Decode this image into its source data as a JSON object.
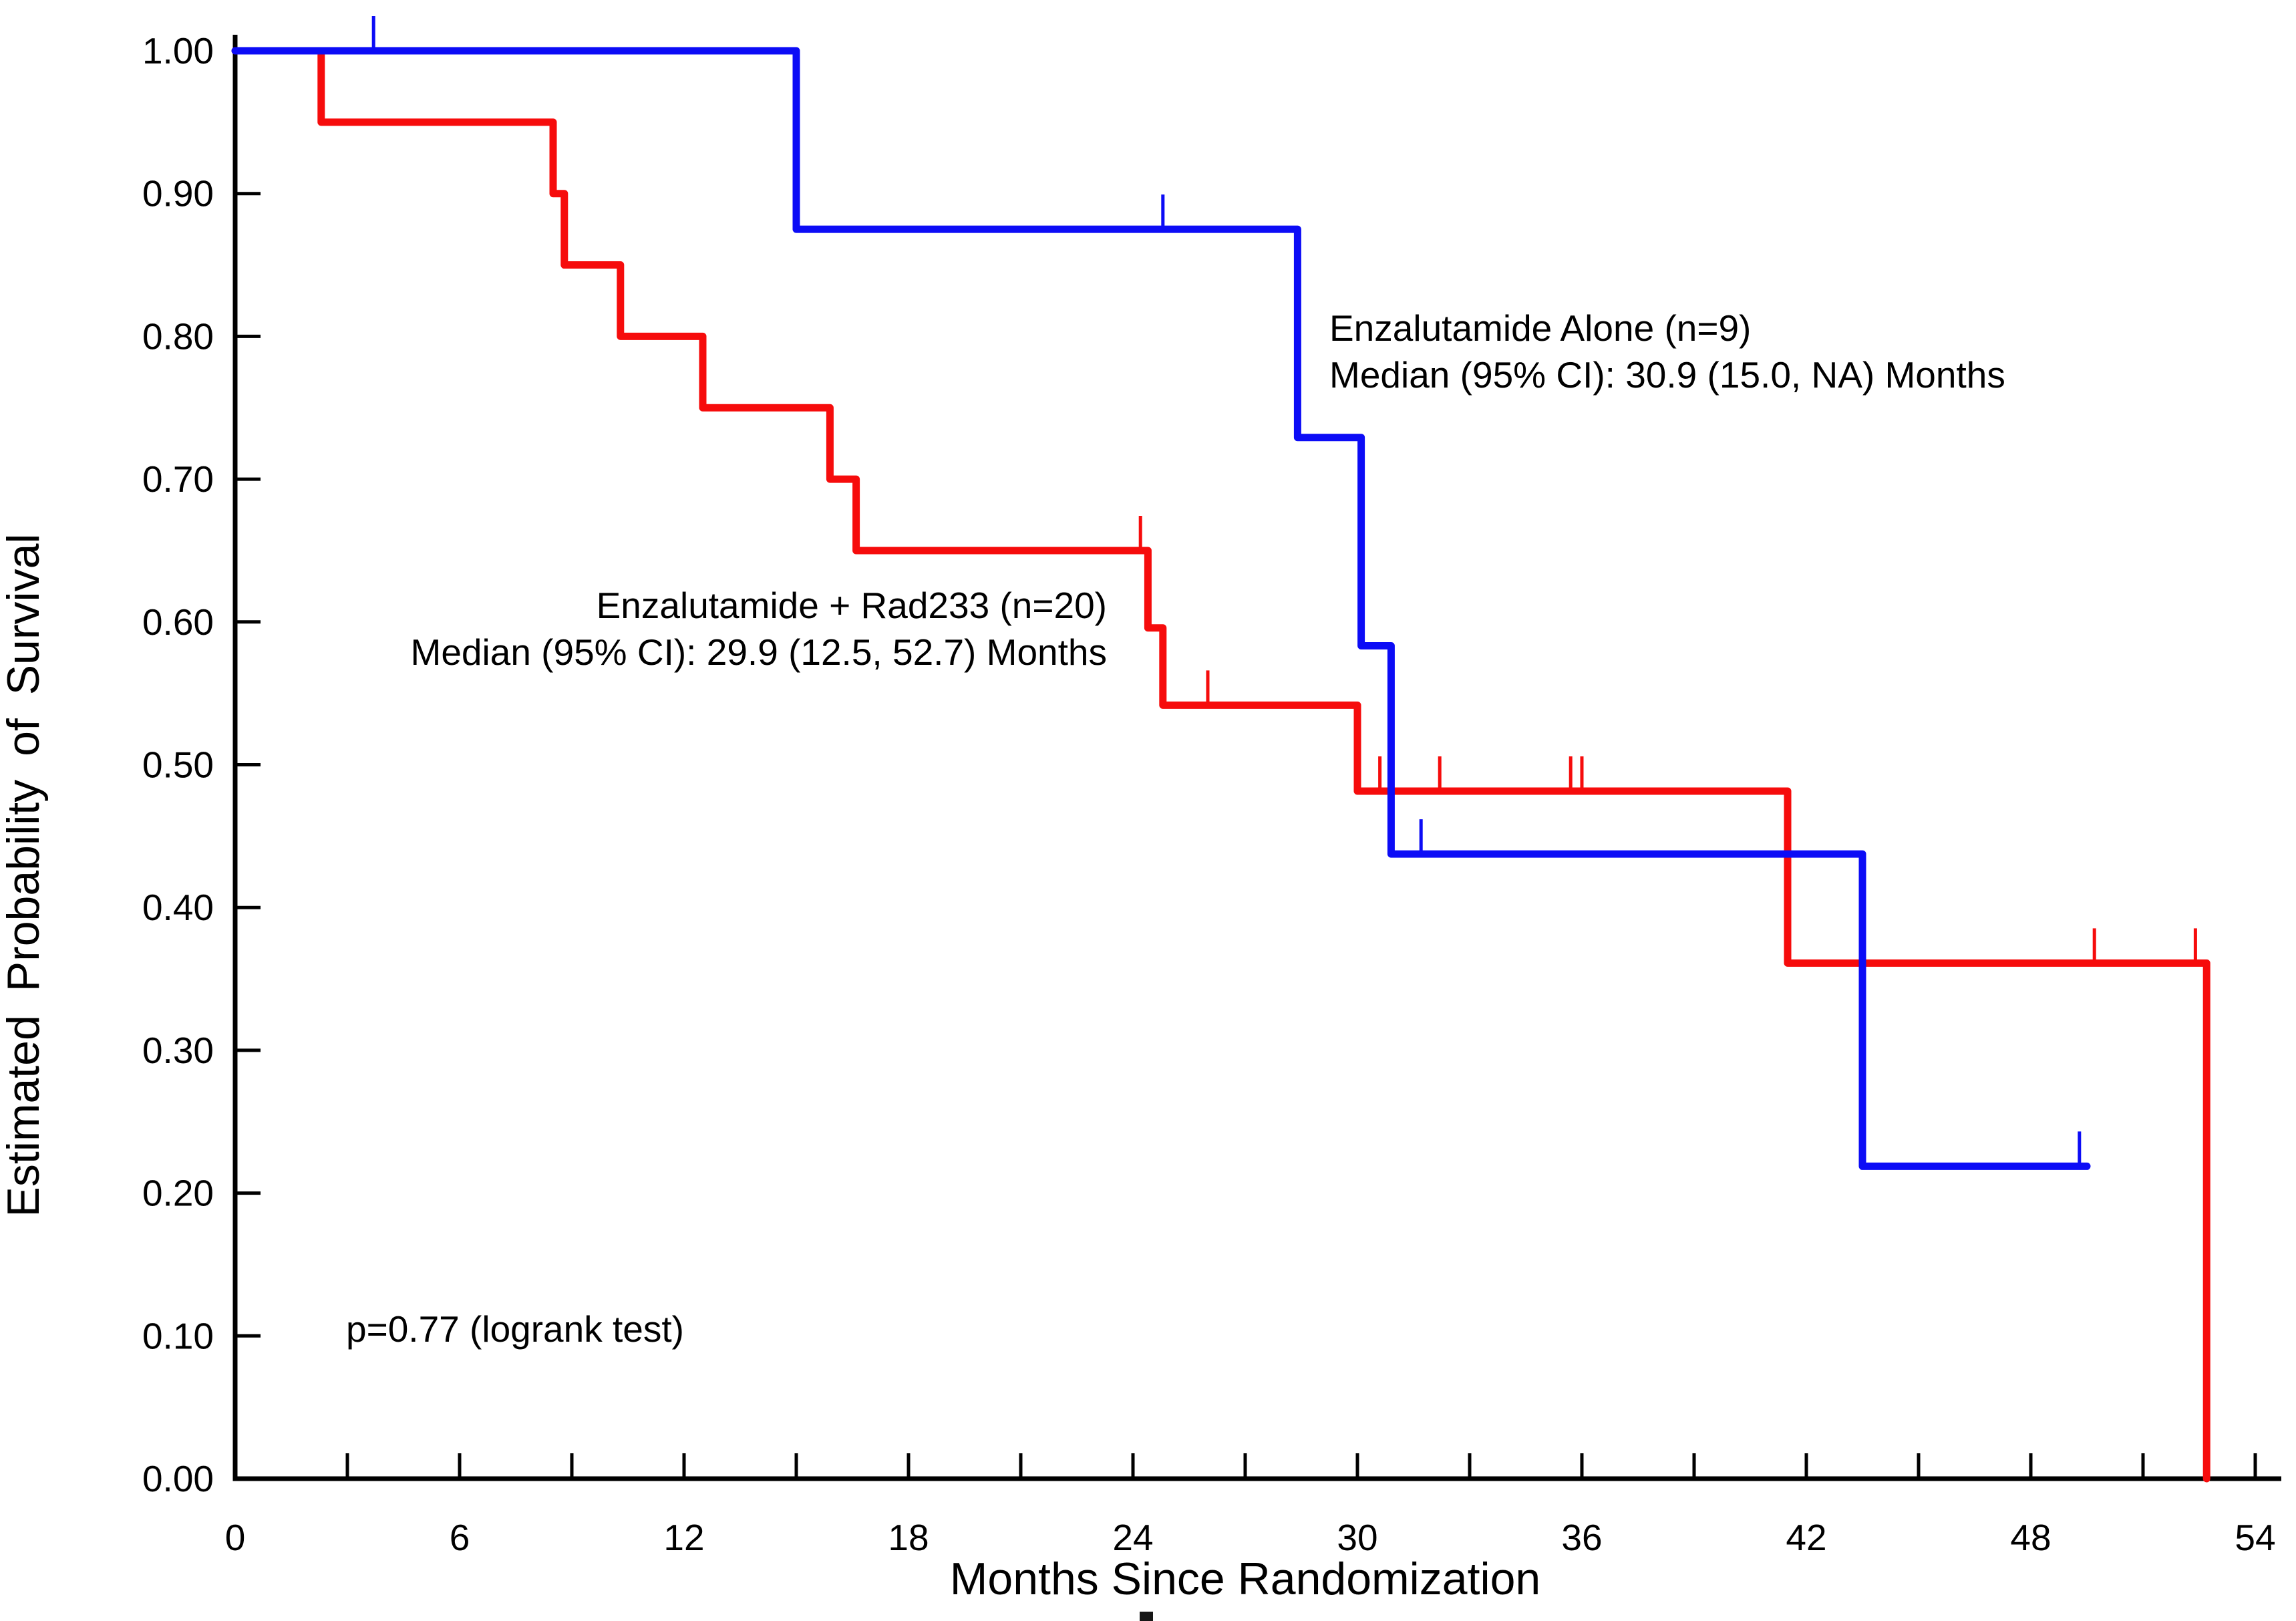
{
  "chart_data": {
    "type": "line",
    "subtype": "kaplan-meier-step",
    "title": "",
    "xlabel": "Months Since Randomization",
    "ylabel": "Estimated Probability of Survival",
    "xlim": [
      0,
      54
    ],
    "ylim": [
      0.0,
      1.0
    ],
    "grid": false,
    "legend_position": "inline-annotations",
    "axis_color": "#000000",
    "x_minor_step": 3,
    "x_tick_labels": [
      "0",
      "6",
      "12",
      "18",
      "24",
      "30",
      "36",
      "42",
      "48",
      "54"
    ],
    "y_tick_labels": [
      "0.00",
      "0.10",
      "0.20",
      "0.30",
      "0.40",
      "0.50",
      "0.60",
      "0.70",
      "0.80",
      "0.90",
      "1.00"
    ],
    "series": [
      {
        "id": "enza-rad233",
        "name": "Enzalutamide + Rad233",
        "n": 20,
        "color": "#f60c0c",
        "median_months": "29.9",
        "ci95": "(12.5, 52.7)",
        "start": [
          0,
          1.0
        ],
        "end_t": 52.7,
        "drops": [
          [
            2.3,
            0.95
          ],
          [
            8.5,
            0.9
          ],
          [
            8.8,
            0.85
          ],
          [
            10.3,
            0.8
          ],
          [
            12.5,
            0.75
          ],
          [
            15.9,
            0.7
          ],
          [
            16.6,
            0.65
          ],
          [
            24.4,
            0.5958
          ],
          [
            24.8,
            0.5417
          ],
          [
            30.0,
            0.4815
          ],
          [
            41.5,
            0.3611
          ],
          [
            52.7,
            0.0
          ]
        ],
        "censors": [
          [
            24.2,
            0.65
          ],
          [
            26.0,
            0.5417
          ],
          [
            30.6,
            0.4815
          ],
          [
            32.2,
            0.4815
          ],
          [
            35.7,
            0.4815
          ],
          [
            36.0,
            0.4815
          ],
          [
            49.7,
            0.3611
          ],
          [
            52.4,
            0.3611
          ]
        ]
      },
      {
        "id": "enza-alone",
        "name": "Enzalutamide Alone",
        "n": 9,
        "color": "#0c0cf6",
        "median_months": "30.9",
        "ci95": "(15.0, NA)",
        "start": [
          0,
          1.0
        ],
        "end_t": 49.5,
        "drops": [
          [
            15.0,
            0.875
          ],
          [
            28.4,
            0.7292
          ],
          [
            30.1,
            0.5833
          ],
          [
            30.9,
            0.4375
          ],
          [
            43.5,
            0.2188
          ]
        ],
        "censors": [
          [
            3.7,
            1.0
          ],
          [
            24.8,
            0.875
          ],
          [
            31.7,
            0.4375
          ],
          [
            49.3,
            0.2188
          ]
        ]
      }
    ]
  },
  "annotations": {
    "blue_line1": "Enzalutamide Alone (n=9)",
    "blue_line2": "Median (95% CI): 30.9 (15.0, NA) Months",
    "red_line1": "Enzalutamide + Rad233 (n=20)",
    "red_line2": "Median (95% CI): 29.9 (12.5, 52.7) Months",
    "pvalue": "p=0.77 (logrank test)"
  }
}
